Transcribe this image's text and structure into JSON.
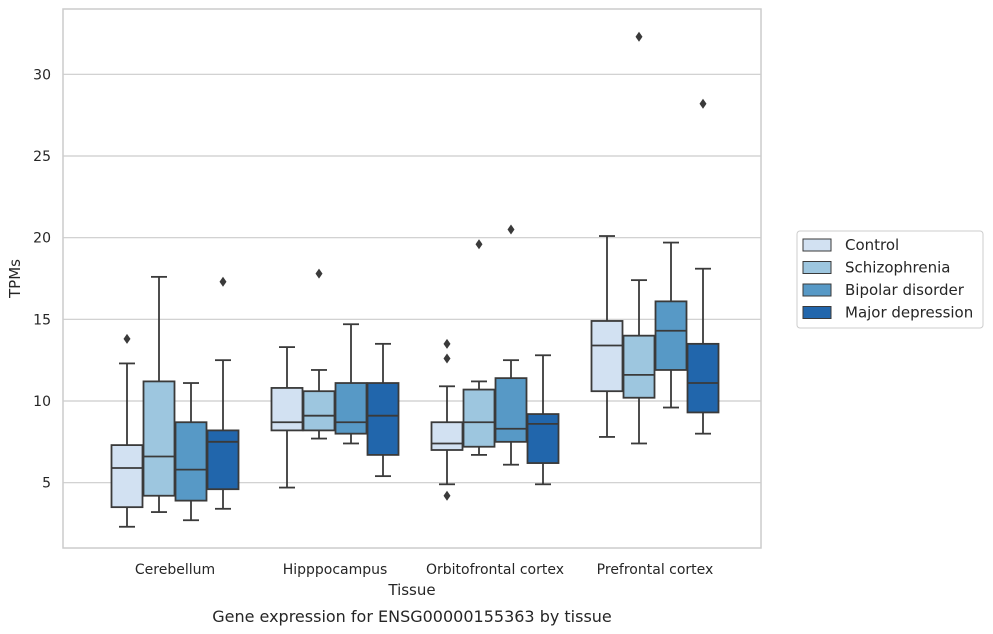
{
  "chart_data": {
    "type": "box",
    "title": "Gene expression for ENSG00000155363 by tissue",
    "xlabel": "Tissue",
    "ylabel": "TPMs",
    "categories": [
      "Cerebellum",
      "Hipppocampus",
      "Orbitofrontal cortex",
      "Prefrontal cortex"
    ],
    "ylim": [
      1.0,
      34.0
    ],
    "yticks": [
      5,
      10,
      15,
      20,
      25,
      30
    ],
    "grid": "horizontal",
    "legend_position": "right",
    "series": [
      {
        "name": "Control",
        "color": "#d2e1f2",
        "boxes": [
          {
            "whisker_low": 2.3,
            "q1": 3.5,
            "median": 5.9,
            "q3": 7.3,
            "whisker_high": 12.3,
            "outliers": [
              13.8
            ]
          },
          {
            "whisker_low": 4.7,
            "q1": 8.2,
            "median": 8.7,
            "q3": 10.8,
            "whisker_high": 13.3,
            "outliers": []
          },
          {
            "whisker_low": 4.9,
            "q1": 7.0,
            "median": 7.4,
            "q3": 8.7,
            "whisker_high": 10.9,
            "outliers": [
              4.2,
              12.6,
              13.5
            ]
          },
          {
            "whisker_low": 7.8,
            "q1": 10.6,
            "median": 13.4,
            "q3": 14.9,
            "whisker_high": 20.1,
            "outliers": []
          }
        ]
      },
      {
        "name": "Schizophrenia",
        "color": "#9dc6df",
        "boxes": [
          {
            "whisker_low": 3.2,
            "q1": 4.2,
            "median": 6.6,
            "q3": 11.2,
            "whisker_high": 17.6,
            "outliers": []
          },
          {
            "whisker_low": 7.7,
            "q1": 8.2,
            "median": 9.1,
            "q3": 10.6,
            "whisker_high": 11.9,
            "outliers": [
              17.8
            ]
          },
          {
            "whisker_low": 6.7,
            "q1": 7.2,
            "median": 8.7,
            "q3": 10.7,
            "whisker_high": 11.2,
            "outliers": [
              19.6
            ]
          },
          {
            "whisker_low": 7.4,
            "q1": 10.2,
            "median": 11.6,
            "q3": 14.0,
            "whisker_high": 17.4,
            "outliers": [
              32.3
            ]
          }
        ]
      },
      {
        "name": "Bipolar disorder",
        "color": "#5799c6",
        "boxes": [
          {
            "whisker_low": 2.7,
            "q1": 3.9,
            "median": 5.8,
            "q3": 8.7,
            "whisker_high": 11.1,
            "outliers": []
          },
          {
            "whisker_low": 7.4,
            "q1": 8.0,
            "median": 8.7,
            "q3": 11.1,
            "whisker_high": 14.7,
            "outliers": []
          },
          {
            "whisker_low": 6.1,
            "q1": 7.5,
            "median": 8.3,
            "q3": 11.4,
            "whisker_high": 12.5,
            "outliers": [
              20.5
            ]
          },
          {
            "whisker_low": 9.6,
            "q1": 11.9,
            "median": 14.3,
            "q3": 16.1,
            "whisker_high": 19.7,
            "outliers": []
          }
        ]
      },
      {
        "name": "Major depression",
        "color": "#2166ac",
        "boxes": [
          {
            "whisker_low": 3.4,
            "q1": 4.6,
            "median": 7.5,
            "q3": 8.2,
            "whisker_high": 12.5,
            "outliers": [
              17.3
            ]
          },
          {
            "whisker_low": 5.4,
            "q1": 6.7,
            "median": 9.1,
            "q3": 11.1,
            "whisker_high": 13.5,
            "outliers": []
          },
          {
            "whisker_low": 4.9,
            "q1": 6.2,
            "median": 8.6,
            "q3": 9.2,
            "whisker_high": 12.8,
            "outliers": []
          },
          {
            "whisker_low": 8.0,
            "q1": 9.3,
            "median": 11.1,
            "q3": 13.5,
            "whisker_high": 18.1,
            "outliers": [
              28.2
            ]
          }
        ]
      }
    ]
  }
}
